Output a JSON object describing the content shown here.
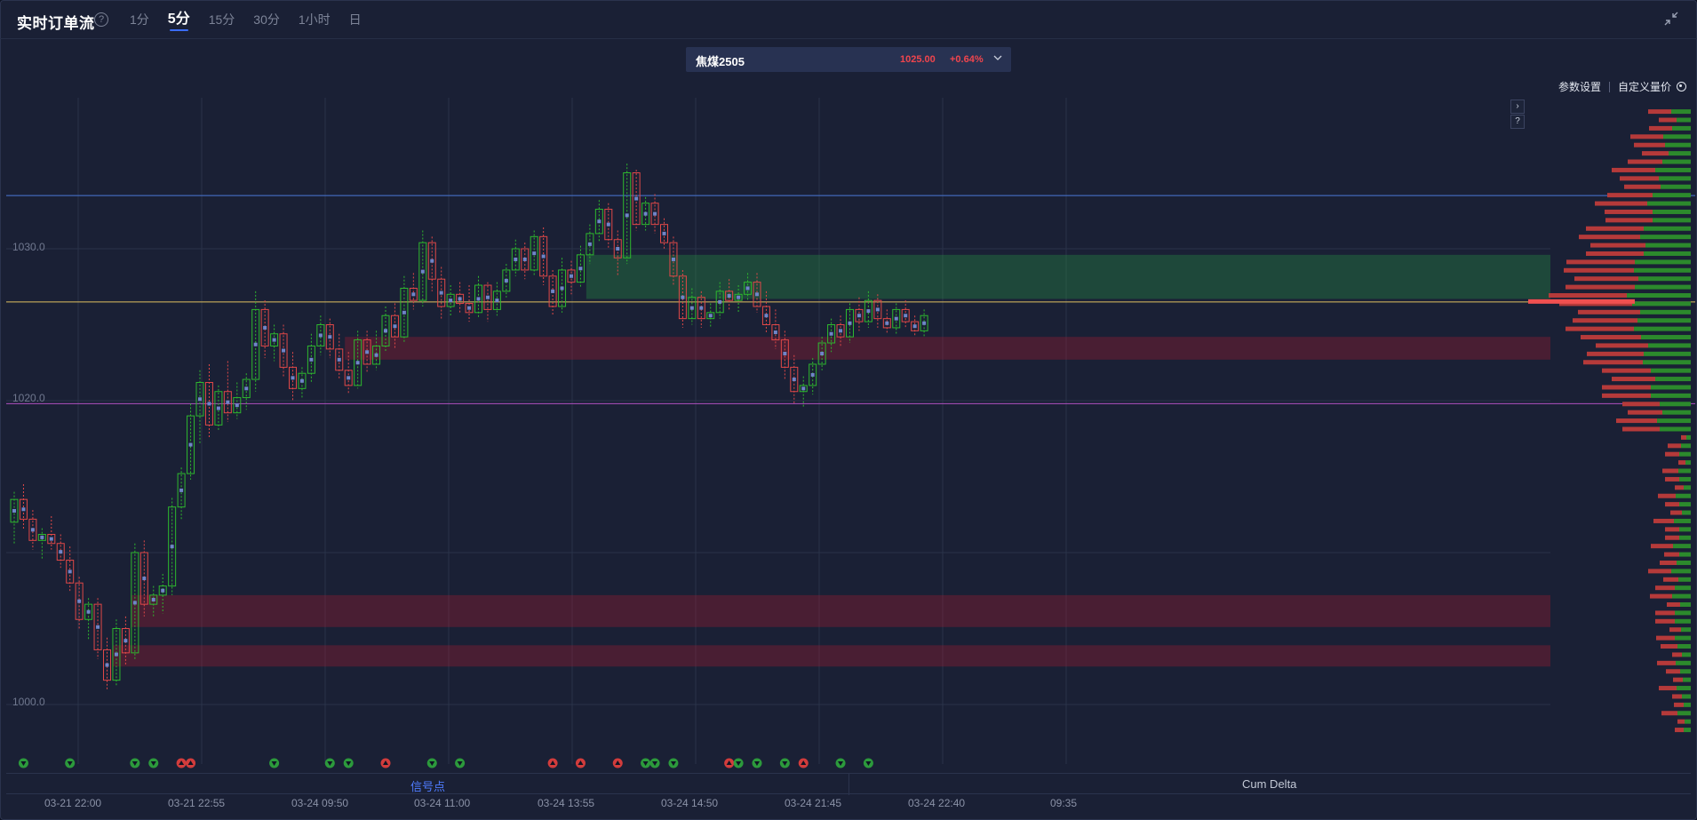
{
  "header": {
    "title": "实时订单流",
    "help_glyph": "?",
    "tabs": [
      {
        "label": "1分",
        "active": false
      },
      {
        "label": "5分",
        "active": true
      },
      {
        "label": "15分",
        "active": false
      },
      {
        "label": "30分",
        "active": false
      },
      {
        "label": "1小时",
        "active": false
      },
      {
        "label": "日",
        "active": false
      }
    ]
  },
  "instrument": {
    "name": "焦煤2505",
    "price": "1025.00",
    "change": "+0.64%"
  },
  "toolbar": {
    "params_label": "参数设置",
    "custom_price_label": "自定义量价"
  },
  "side_buttons": {
    "expand": "›",
    "help": "?"
  },
  "bottom_tabs": {
    "signals": "信号点",
    "cum_delta": "Cum Delta"
  },
  "colors": {
    "background": "#1a2035",
    "up": "#2eb82e",
    "down": "#e04848",
    "accent": "#3a6cf4",
    "price_line": "#e0c060",
    "high_line": "#4a78d8",
    "low_line": "#b050c0"
  },
  "chart_data": {
    "type": "candlestick-footprint",
    "y_ticks": [
      "1030.0",
      "1020.0",
      "1000.0"
    ],
    "y_range": [
      998,
      1041
    ],
    "x_labels": [
      "03-21 22:00",
      "03-21 22:55",
      "03-24 09:50",
      "03-24 11:00",
      "03-24 13:55",
      "03-24 14:50",
      "03-24 21:45",
      "03-24 22:40",
      "09:35"
    ],
    "reference_lines": {
      "high": 1033.5,
      "current": 1026.5,
      "low": 1019.8
    },
    "zones": [
      {
        "kind": "resistance",
        "from": 1026.7,
        "to": 1029.6,
        "start_bar": 62
      },
      {
        "kind": "support",
        "from": 1022.7,
        "to": 1024.2,
        "start_bar": 36
      },
      {
        "kind": "support",
        "from": 1005.1,
        "to": 1007.2,
        "start_bar": 13
      },
      {
        "kind": "support",
        "from": 1002.5,
        "to": 1003.9,
        "start_bar": 11
      }
    ],
    "candles": [
      [
        1012,
        1014,
        1010.5,
        1013.5
      ],
      [
        1013.5,
        1014.5,
        1011.5,
        1012.2
      ],
      [
        1012.2,
        1012.8,
        1010.2,
        1010.8
      ],
      [
        1010.8,
        1011.6,
        1009.6,
        1011.2
      ],
      [
        1011.2,
        1012.4,
        1010.2,
        1010.6
      ],
      [
        1010.6,
        1011.2,
        1009.0,
        1009.5
      ],
      [
        1009.5,
        1010.4,
        1007.4,
        1008.0
      ],
      [
        1008.0,
        1008.4,
        1005.0,
        1005.6
      ],
      [
        1005.6,
        1007.0,
        1004.2,
        1006.6
      ],
      [
        1006.6,
        1007.0,
        1003.0,
        1003.6
      ],
      [
        1003.6,
        1004.4,
        1001.0,
        1001.6
      ],
      [
        1001.6,
        1005.6,
        1001.2,
        1005.0
      ],
      [
        1005.0,
        1005.8,
        1002.6,
        1003.4
      ],
      [
        1003.4,
        1010.6,
        1003.0,
        1010.0
      ],
      [
        1010.0,
        1010.8,
        1005.8,
        1006.6
      ],
      [
        1006.6,
        1007.8,
        1005.8,
        1007.2
      ],
      [
        1007.2,
        1008.6,
        1006.0,
        1007.8
      ],
      [
        1007.8,
        1013.6,
        1007.2,
        1013.0
      ],
      [
        1013.0,
        1015.6,
        1012.2,
        1015.2
      ],
      [
        1015.2,
        1019.8,
        1014.8,
        1019.0
      ],
      [
        1019.0,
        1022.0,
        1017.2,
        1021.2
      ],
      [
        1021.2,
        1022.4,
        1017.6,
        1018.4
      ],
      [
        1018.4,
        1021.0,
        1018.0,
        1020.6
      ],
      [
        1020.6,
        1022.6,
        1018.6,
        1019.2
      ],
      [
        1019.2,
        1021.2,
        1018.8,
        1020.2
      ],
      [
        1020.2,
        1021.8,
        1019.4,
        1021.4
      ],
      [
        1021.4,
        1027.2,
        1020.6,
        1026.0
      ],
      [
        1026.0,
        1026.6,
        1022.8,
        1023.6
      ],
      [
        1023.6,
        1025.0,
        1022.6,
        1024.4
      ],
      [
        1024.4,
        1025.0,
        1021.6,
        1022.2
      ],
      [
        1022.2,
        1023.2,
        1020.0,
        1020.8
      ],
      [
        1020.8,
        1022.2,
        1020.2,
        1021.8
      ],
      [
        1021.8,
        1024.4,
        1021.2,
        1023.6
      ],
      [
        1023.6,
        1025.6,
        1023.0,
        1025.0
      ],
      [
        1025.0,
        1025.4,
        1022.8,
        1023.4
      ],
      [
        1023.4,
        1024.4,
        1021.4,
        1022.0
      ],
      [
        1022.0,
        1023.2,
        1020.4,
        1021.0
      ],
      [
        1021.0,
        1024.6,
        1020.8,
        1024.0
      ],
      [
        1024.0,
        1024.6,
        1021.8,
        1022.4
      ],
      [
        1022.4,
        1024.6,
        1022.0,
        1023.6
      ],
      [
        1023.6,
        1026.2,
        1023.2,
        1025.6
      ],
      [
        1025.6,
        1026.4,
        1023.4,
        1024.2
      ],
      [
        1024.2,
        1028.2,
        1023.8,
        1027.4
      ],
      [
        1027.4,
        1028.4,
        1026.0,
        1026.6
      ],
      [
        1026.6,
        1031.2,
        1026.2,
        1030.4
      ],
      [
        1030.4,
        1030.8,
        1027.2,
        1028.0
      ],
      [
        1028.0,
        1028.8,
        1025.4,
        1026.2
      ],
      [
        1026.2,
        1027.6,
        1025.6,
        1027.0
      ],
      [
        1027.0,
        1027.8,
        1025.8,
        1026.4
      ],
      [
        1026.4,
        1027.6,
        1025.2,
        1025.8
      ],
      [
        1025.8,
        1028.2,
        1025.4,
        1027.6
      ],
      [
        1027.6,
        1027.8,
        1025.2,
        1026.0
      ],
      [
        1026.0,
        1027.8,
        1025.6,
        1027.2
      ],
      [
        1027.2,
        1029.0,
        1026.8,
        1028.6
      ],
      [
        1028.6,
        1030.6,
        1028.2,
        1030.0
      ],
      [
        1030.0,
        1030.4,
        1028.0,
        1028.6
      ],
      [
        1028.6,
        1031.2,
        1028.2,
        1030.8
      ],
      [
        1030.8,
        1031.4,
        1027.6,
        1028.2
      ],
      [
        1028.2,
        1028.6,
        1025.6,
        1026.2
      ],
      [
        1026.2,
        1029.4,
        1025.8,
        1028.6
      ],
      [
        1028.6,
        1029.2,
        1027.0,
        1027.8
      ],
      [
        1027.8,
        1030.2,
        1027.4,
        1029.6
      ],
      [
        1029.6,
        1031.6,
        1029.0,
        1031.0
      ],
      [
        1031.0,
        1033.2,
        1030.4,
        1032.6
      ],
      [
        1032.6,
        1033.0,
        1030.0,
        1030.6
      ],
      [
        1030.6,
        1031.2,
        1028.2,
        1029.4
      ],
      [
        1029.4,
        1035.6,
        1029.0,
        1035.0
      ],
      [
        1035.0,
        1035.2,
        1031.2,
        1031.6
      ],
      [
        1031.6,
        1033.4,
        1031.2,
        1033.0
      ],
      [
        1033.0,
        1033.6,
        1031.0,
        1031.6
      ],
      [
        1031.6,
        1032.0,
        1030.0,
        1030.4
      ],
      [
        1030.4,
        1030.8,
        1027.6,
        1028.2
      ],
      [
        1028.2,
        1028.6,
        1024.8,
        1025.4
      ],
      [
        1025.4,
        1027.4,
        1025.0,
        1026.8
      ],
      [
        1026.8,
        1027.2,
        1024.8,
        1025.4
      ],
      [
        1025.4,
        1026.4,
        1024.8,
        1025.8
      ],
      [
        1025.8,
        1027.8,
        1025.4,
        1027.2
      ],
      [
        1027.2,
        1028.0,
        1026.0,
        1026.6
      ],
      [
        1026.6,
        1027.6,
        1025.8,
        1027.0
      ],
      [
        1027.0,
        1028.4,
        1026.6,
        1027.8
      ],
      [
        1027.8,
        1028.4,
        1025.8,
        1026.2
      ],
      [
        1026.2,
        1027.2,
        1024.4,
        1025.0
      ],
      [
        1025.0,
        1026.0,
        1023.4,
        1024.0
      ],
      [
        1024.0,
        1024.6,
        1021.4,
        1022.2
      ],
      [
        1022.2,
        1023.0,
        1019.8,
        1020.6
      ],
      [
        1020.6,
        1021.6,
        1019.6,
        1021.0
      ],
      [
        1021.0,
        1022.8,
        1020.4,
        1022.4
      ],
      [
        1022.4,
        1024.2,
        1022.0,
        1023.8
      ],
      [
        1023.8,
        1025.4,
        1023.2,
        1025.0
      ],
      [
        1025.0,
        1025.6,
        1023.6,
        1024.2
      ],
      [
        1024.2,
        1026.4,
        1023.8,
        1026.0
      ],
      [
        1026.0,
        1026.8,
        1024.6,
        1025.2
      ],
      [
        1025.2,
        1027.2,
        1024.8,
        1026.6
      ],
      [
        1026.6,
        1027.0,
        1024.8,
        1025.4
      ],
      [
        1025.4,
        1026.0,
        1024.4,
        1024.8
      ],
      [
        1024.8,
        1026.4,
        1024.4,
        1026.0
      ],
      [
        1026.0,
        1026.6,
        1024.8,
        1025.2
      ],
      [
        1025.2,
        1025.6,
        1024.2,
        1024.6
      ],
      [
        1024.6,
        1026.0,
        1024.2,
        1025.6
      ]
    ],
    "signals": [
      {
        "bar": 1,
        "dir": "down",
        "kind": "down-bold"
      },
      {
        "bar": 6,
        "dir": "down",
        "kind": "down"
      },
      {
        "bar": 13,
        "dir": "down",
        "kind": "double"
      },
      {
        "bar": 15,
        "dir": "down",
        "kind": "double"
      },
      {
        "bar": 18,
        "dir": "up",
        "kind": "mixed"
      },
      {
        "bar": 19,
        "dir": "up",
        "kind": "up"
      },
      {
        "bar": 28,
        "dir": "down",
        "kind": "down"
      },
      {
        "bar": 34,
        "dir": "down",
        "kind": "down"
      },
      {
        "bar": 36,
        "dir": "down",
        "kind": "double"
      },
      {
        "bar": 40,
        "dir": "up",
        "kind": "up"
      },
      {
        "bar": 45,
        "dir": "down",
        "kind": "down"
      },
      {
        "bar": 48,
        "dir": "down",
        "kind": "down"
      },
      {
        "bar": 58,
        "dir": "up",
        "kind": "up"
      },
      {
        "bar": 61,
        "dir": "up",
        "kind": "up"
      },
      {
        "bar": 65,
        "dir": "up",
        "kind": "up"
      },
      {
        "bar": 68,
        "dir": "down",
        "kind": "down"
      },
      {
        "bar": 69,
        "dir": "down",
        "kind": "double-green"
      },
      {
        "bar": 71,
        "dir": "down",
        "kind": "down"
      },
      {
        "bar": 77,
        "dir": "up",
        "kind": "up"
      },
      {
        "bar": 78,
        "dir": "down",
        "kind": "mixed-green"
      },
      {
        "bar": 80,
        "dir": "down",
        "kind": "down"
      },
      {
        "bar": 83,
        "dir": "down",
        "kind": "down-bold"
      },
      {
        "bar": 85,
        "dir": "up",
        "kind": "up"
      },
      {
        "bar": 89,
        "dir": "down",
        "kind": "down"
      },
      {
        "bar": 92,
        "dir": "down",
        "kind": "down"
      }
    ]
  }
}
